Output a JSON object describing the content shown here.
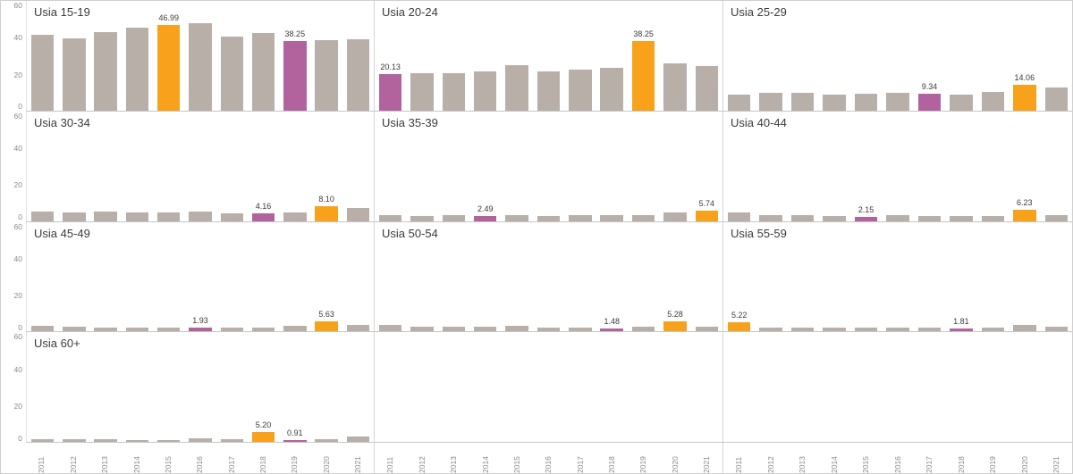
{
  "colors": {
    "bar": "#b8afa9",
    "highlight_orange": "#f7a21a",
    "highlight_purple": "#b2639e",
    "axis_text": "#8a8a8a",
    "title_text": "#3b3b3b",
    "grid_line": "#c6c6c6"
  },
  "chart_data": {
    "type": "bar",
    "x": [
      "2011",
      "2012",
      "2013",
      "2014",
      "2015",
      "2016",
      "2017",
      "2018",
      "2019",
      "2020",
      "2021"
    ],
    "y_max": 60,
    "y_ticks": [
      60,
      40,
      20,
      0
    ],
    "layout": {
      "columns": 3,
      "rows": 4,
      "legend": "none",
      "grid": "off"
    },
    "panels": [
      {
        "title": "Usia 15-19",
        "values": [
          41.2,
          39.3,
          43.1,
          45.2,
          46.99,
          47.8,
          40.6,
          42.2,
          38.25,
          38.7,
          39.2
        ],
        "marks": [
          "g",
          "g",
          "g",
          "g",
          "o",
          "g",
          "g",
          "g",
          "p",
          "g",
          "g"
        ],
        "labels": [
          "",
          "",
          "",
          "",
          "46.99",
          "",
          "",
          "",
          "38.25",
          "",
          ""
        ]
      },
      {
        "title": "Usia 20-24",
        "values": [
          20.13,
          20.6,
          20.2,
          21.3,
          24.6,
          21.6,
          22.2,
          23.3,
          38.25,
          25.6,
          24.2
        ],
        "marks": [
          "p",
          "g",
          "g",
          "g",
          "g",
          "g",
          "g",
          "g",
          "o",
          "g",
          "g"
        ],
        "labels": [
          "20.13",
          "",
          "",
          "",
          "",
          "",
          "",
          "",
          "38.25",
          "",
          ""
        ]
      },
      {
        "title": "Usia 25-29",
        "values": [
          8.6,
          9.7,
          9.6,
          8.9,
          9.2,
          9.6,
          9.34,
          8.8,
          10.1,
          14.06,
          12.6
        ],
        "marks": [
          "g",
          "g",
          "g",
          "g",
          "g",
          "g",
          "p",
          "g",
          "g",
          "o",
          "g"
        ],
        "labels": [
          "",
          "",
          "",
          "",
          "",
          "",
          "9.34",
          "",
          "",
          "14.06",
          ""
        ]
      },
      {
        "title": "Usia 30-34",
        "values": [
          5.2,
          4.6,
          5.0,
          4.6,
          4.7,
          4.9,
          4.4,
          4.16,
          4.6,
          8.1,
          7.0
        ],
        "marks": [
          "g",
          "g",
          "g",
          "g",
          "g",
          "g",
          "g",
          "p",
          "g",
          "o",
          "g"
        ],
        "labels": [
          "",
          "",
          "",
          "",
          "",
          "",
          "",
          "4.16",
          "",
          "8.10",
          ""
        ]
      },
      {
        "title": "Usia 35-39",
        "values": [
          3.1,
          2.8,
          3.0,
          2.49,
          3.3,
          2.9,
          3.0,
          3.0,
          3.3,
          4.6,
          5.74
        ],
        "marks": [
          "g",
          "g",
          "g",
          "p",
          "g",
          "g",
          "g",
          "g",
          "g",
          "g",
          "o"
        ],
        "labels": [
          "",
          "",
          "",
          "2.49",
          "",
          "",
          "",
          "",
          "",
          "",
          "5.74"
        ]
      },
      {
        "title": "Usia 40-44",
        "values": [
          4.6,
          3.1,
          3.0,
          2.9,
          2.15,
          3.0,
          2.6,
          2.6,
          2.9,
          6.23,
          3.2
        ],
        "marks": [
          "g",
          "g",
          "g",
          "g",
          "p",
          "g",
          "g",
          "g",
          "g",
          "o",
          "g"
        ],
        "labels": [
          "",
          "",
          "",
          "",
          "2.15",
          "",
          "",
          "",
          "",
          "6.23",
          ""
        ]
      },
      {
        "title": "Usia 45-49",
        "values": [
          3.2,
          2.6,
          2.3,
          2.1,
          2.1,
          1.93,
          1.9,
          2.3,
          2.9,
          5.63,
          3.6
        ],
        "marks": [
          "g",
          "g",
          "g",
          "g",
          "g",
          "p",
          "g",
          "g",
          "g",
          "o",
          "g"
        ],
        "labels": [
          "",
          "",
          "",
          "",
          "",
          "1.93",
          "",
          "",
          "",
          "5.63",
          ""
        ]
      },
      {
        "title": "Usia 50-54",
        "values": [
          3.6,
          2.6,
          2.6,
          2.6,
          2.9,
          2.1,
          2.3,
          1.48,
          2.6,
          5.28,
          2.6
        ],
        "marks": [
          "g",
          "g",
          "g",
          "g",
          "g",
          "g",
          "g",
          "p",
          "g",
          "o",
          "g"
        ],
        "labels": [
          "",
          "",
          "",
          "",
          "",
          "",
          "",
          "1.48",
          "",
          "5.28",
          ""
        ]
      },
      {
        "title": "Usia 55-59",
        "values": [
          5.22,
          2.3,
          2.1,
          2.1,
          2.3,
          2.1,
          2.1,
          1.81,
          2.1,
          3.6,
          2.6
        ],
        "marks": [
          "o",
          "g",
          "g",
          "g",
          "g",
          "g",
          "g",
          "p",
          "g",
          "g",
          "g"
        ],
        "labels": [
          "5.22",
          "",
          "",
          "",
          "",
          "",
          "",
          "1.81",
          "",
          "",
          ""
        ]
      },
      {
        "title": "Usia 60+",
        "values": [
          1.6,
          1.3,
          1.3,
          1.1,
          0.9,
          2.1,
          1.3,
          5.2,
          0.91,
          1.3,
          2.9
        ],
        "marks": [
          "g",
          "g",
          "g",
          "g",
          "g",
          "g",
          "g",
          "o",
          "p",
          "g",
          "g"
        ],
        "labels": [
          "",
          "",
          "",
          "",
          "",
          "",
          "",
          "5.20",
          "0.91",
          "",
          ""
        ]
      },
      null,
      null
    ]
  }
}
